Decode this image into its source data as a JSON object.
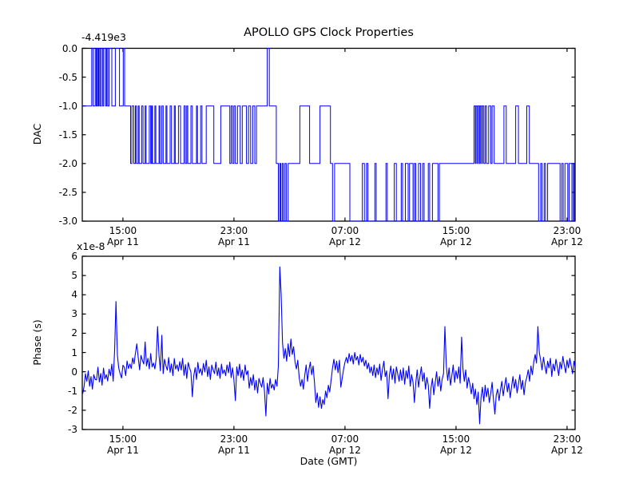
{
  "figure": {
    "title": "APOLLO GPS Clock Properties",
    "xlabel": "Date (GMT)",
    "line_color": "#0000ff",
    "axes_color": "#000000",
    "background_color": "#ffffff"
  },
  "chart_data": [
    {
      "type": "line",
      "subplot": "top",
      "ylabel": "DAC",
      "offset_text": "-4.419e3",
      "ylim": [
        -3.0,
        0.0
      ],
      "yticks": [
        0.0,
        -0.5,
        -1.0,
        -1.5,
        -2.0,
        -2.5,
        -3.0
      ],
      "ytick_labels": [
        "0.0",
        "-0.5",
        "-1.0",
        "-1.5",
        "-2.0",
        "-2.5",
        "-3.0"
      ],
      "xlim_hours": [
        12.07,
        47.58
      ],
      "xticks_hours": [
        15,
        23,
        31,
        39,
        47
      ],
      "xtick_labels": [
        [
          "15:00",
          "Apr 11"
        ],
        [
          "23:00",
          "Apr 11"
        ],
        [
          "07:00",
          "Apr 12"
        ],
        [
          "15:00",
          "Apr 12"
        ],
        [
          "23:00",
          "Apr 12"
        ]
      ],
      "grid": false,
      "legend": "none",
      "series": [
        {
          "name": "DAC steps",
          "style": "steps-post",
          "points": [
            [
              12.07,
              -1
            ],
            [
              12.75,
              0
            ],
            [
              12.85,
              -1
            ],
            [
              13.0,
              0
            ],
            [
              13.08,
              -1
            ],
            [
              13.15,
              0
            ],
            [
              13.22,
              -1
            ],
            [
              13.28,
              0
            ],
            [
              13.36,
              -1
            ],
            [
              13.45,
              0
            ],
            [
              13.55,
              -1
            ],
            [
              13.62,
              0
            ],
            [
              13.75,
              -1
            ],
            [
              13.82,
              0
            ],
            [
              13.9,
              -1
            ],
            [
              14.0,
              0
            ],
            [
              14.2,
              -1
            ],
            [
              14.45,
              0
            ],
            [
              14.75,
              -1
            ],
            [
              15.02,
              0
            ],
            [
              15.12,
              -1
            ],
            [
              15.55,
              -2
            ],
            [
              15.65,
              -1
            ],
            [
              15.78,
              -2
            ],
            [
              15.9,
              -1
            ],
            [
              15.97,
              -2
            ],
            [
              16.1,
              -1
            ],
            [
              16.17,
              -2
            ],
            [
              16.35,
              -1
            ],
            [
              16.45,
              -2
            ],
            [
              16.6,
              -1
            ],
            [
              16.67,
              -2
            ],
            [
              16.9,
              -1
            ],
            [
              17.0,
              -2
            ],
            [
              17.07,
              -1
            ],
            [
              17.13,
              -2
            ],
            [
              17.3,
              -1
            ],
            [
              17.37,
              -2
            ],
            [
              17.6,
              -1
            ],
            [
              17.67,
              -2
            ],
            [
              17.8,
              -1
            ],
            [
              17.9,
              -2
            ],
            [
              18.1,
              -1
            ],
            [
              18.17,
              -2
            ],
            [
              18.4,
              -1
            ],
            [
              18.5,
              -2
            ],
            [
              18.7,
              -1
            ],
            [
              18.77,
              -2
            ],
            [
              19.0,
              -1
            ],
            [
              19.15,
              -2
            ],
            [
              19.4,
              -1
            ],
            [
              19.5,
              -2
            ],
            [
              19.6,
              -1
            ],
            [
              19.67,
              -2
            ],
            [
              19.9,
              -1
            ],
            [
              20.0,
              -2
            ],
            [
              20.3,
              -1
            ],
            [
              20.37,
              -2
            ],
            [
              20.6,
              -1
            ],
            [
              20.7,
              -2
            ],
            [
              21.0,
              -1
            ],
            [
              21.55,
              -2
            ],
            [
              22.05,
              -1
            ],
            [
              22.7,
              -2
            ],
            [
              22.8,
              -1
            ],
            [
              22.9,
              -2
            ],
            [
              23.0,
              -1
            ],
            [
              23.1,
              -2
            ],
            [
              23.25,
              -1
            ],
            [
              23.45,
              -2
            ],
            [
              23.6,
              -1
            ],
            [
              23.9,
              -2
            ],
            [
              24.05,
              -1
            ],
            [
              24.2,
              -2
            ],
            [
              24.35,
              -1
            ],
            [
              24.5,
              -2
            ],
            [
              24.62,
              -1
            ],
            [
              25.4,
              0
            ],
            [
              25.55,
              -1
            ],
            [
              26.05,
              -2
            ],
            [
              26.2,
              -3
            ],
            [
              26.3,
              -2
            ],
            [
              26.37,
              -3
            ],
            [
              26.47,
              -2
            ],
            [
              26.55,
              -3
            ],
            [
              26.67,
              -2
            ],
            [
              26.77,
              -3
            ],
            [
              26.9,
              -2
            ],
            [
              27.75,
              -1
            ],
            [
              28.45,
              -2
            ],
            [
              29.2,
              -1
            ],
            [
              29.95,
              -2
            ],
            [
              30.1,
              -3
            ],
            [
              30.25,
              -2
            ],
            [
              31.35,
              -3
            ],
            [
              32.25,
              -2
            ],
            [
              32.4,
              -3
            ],
            [
              32.55,
              -2
            ],
            [
              32.65,
              -3
            ],
            [
              33.15,
              -2
            ],
            [
              33.25,
              -3
            ],
            [
              33.95,
              -2
            ],
            [
              34.05,
              -3
            ],
            [
              34.55,
              -2
            ],
            [
              34.7,
              -3
            ],
            [
              35.05,
              -2
            ],
            [
              35.15,
              -3
            ],
            [
              35.35,
              -2
            ],
            [
              35.55,
              -3
            ],
            [
              35.65,
              -2
            ],
            [
              35.9,
              -3
            ],
            [
              36.0,
              -2
            ],
            [
              36.1,
              -3
            ],
            [
              36.3,
              -2
            ],
            [
              36.45,
              -3
            ],
            [
              36.6,
              -2
            ],
            [
              36.7,
              -3
            ],
            [
              37.0,
              -2
            ],
            [
              37.1,
              -3
            ],
            [
              37.3,
              -2
            ],
            [
              37.7,
              -3
            ],
            [
              37.8,
              -2
            ],
            [
              40.3,
              -1
            ],
            [
              40.4,
              -2
            ],
            [
              40.45,
              -1
            ],
            [
              40.55,
              -2
            ],
            [
              40.6,
              -1
            ],
            [
              40.7,
              -2
            ],
            [
              40.75,
              -1
            ],
            [
              40.85,
              -2
            ],
            [
              40.9,
              -1
            ],
            [
              41.0,
              -2
            ],
            [
              41.1,
              -1
            ],
            [
              41.2,
              -2
            ],
            [
              41.35,
              -1
            ],
            [
              41.5,
              -2
            ],
            [
              41.6,
              -1
            ],
            [
              41.75,
              -2
            ],
            [
              42.45,
              -1
            ],
            [
              42.62,
              -2
            ],
            [
              43.3,
              -1
            ],
            [
              43.5,
              -2
            ],
            [
              44.1,
              -1
            ],
            [
              44.28,
              -2
            ],
            [
              44.95,
              -3
            ],
            [
              45.1,
              -2
            ],
            [
              45.2,
              -3
            ],
            [
              45.35,
              -2
            ],
            [
              45.45,
              -3
            ],
            [
              45.6,
              -2
            ],
            [
              46.5,
              -3
            ],
            [
              46.62,
              -2
            ],
            [
              46.72,
              -3
            ],
            [
              46.85,
              -2
            ],
            [
              47.05,
              -3
            ],
            [
              47.15,
              -2
            ],
            [
              47.35,
              -3
            ],
            [
              47.45,
              -2
            ],
            [
              47.52,
              -3
            ]
          ]
        }
      ]
    },
    {
      "type": "line",
      "subplot": "bottom",
      "ylabel": "Phase (s)",
      "offset_text": "x1e-8",
      "ylim": [
        -3,
        6
      ],
      "yticks": [
        6,
        5,
        4,
        3,
        2,
        1,
        0,
        -1,
        -2,
        -3
      ],
      "ytick_labels": [
        "6",
        "5",
        "4",
        "3",
        "2",
        "1",
        "0",
        "-1",
        "-2",
        "-3"
      ],
      "xlim_hours": [
        12.07,
        47.58
      ],
      "xticks_hours": [
        15,
        23,
        31,
        39,
        47
      ],
      "xtick_labels": [
        [
          "15:00",
          "Apr 11"
        ],
        [
          "23:00",
          "Apr 11"
        ],
        [
          "07:00",
          "Apr 12"
        ],
        [
          "15:00",
          "Apr 12"
        ],
        [
          "23:00",
          "Apr 12"
        ]
      ],
      "grid": false,
      "legend": "none",
      "series": [
        {
          "name": "phase",
          "style": "line",
          "t0": 12.1,
          "dt": 0.1,
          "values": [
            -1.15,
            -0.75,
            -0.1,
            -0.5,
            0.05,
            -0.75,
            -0.25,
            -0.9,
            -0.15,
            -0.4,
            -0.42,
            0.24,
            -0.53,
            -0.09,
            -0.7,
            0.19,
            -0.37,
            -0.15,
            -0.48,
            0.13,
            -0.21,
            0.4,
            -0.49,
            1.1,
            3.65,
            0.85,
            0.18,
            -0.1,
            -0.32,
            0.34,
            0.24,
            -0.2,
            0.56,
            0.17,
            0.4,
            0.17,
            0.72,
            0.41,
            0.95,
            1.45,
            0.75,
            0.1,
            0.85,
            0.6,
            0.4,
            1.55,
            0.3,
            0.7,
            0.15,
            0.95,
            0.25,
            0.45,
            0.15,
            0.7,
            2.35,
            0.85,
            0.05,
            1.9,
            -0.1,
            0.65,
            0.3,
            0.08,
            0.74,
            -0.03,
            0.41,
            -0.2,
            0.69,
            0.14,
            0.36,
            0.03,
            0.53,
            0.09,
            0.7,
            -0.19,
            0.37,
            -0.35,
            0.48,
            0.2,
            -0.02,
            -1.3,
            -0.23,
            0.21,
            -0.4,
            0.49,
            -0.07,
            0.16,
            -0.18,
            0.43,
            -0.01,
            0.6,
            -0.25,
            0.25,
            -0.4,
            0.35,
            0.1,
            -0.1,
            0.5,
            -0.2,
            0.2,
            -0.35,
            0.4,
            -0.1,
            0.1,
            -0.2,
            0.35,
            -0.05,
            0.5,
            -0.3,
            0.2,
            -0.45,
            -1.5,
            0.25,
            -0.2,
            0.4,
            -0.3,
            0.1,
            -0.45,
            0.35,
            -0.15,
            0.05,
            -0.85,
            -0.3,
            -0.7,
            -0.15,
            -0.95,
            -0.45,
            -1.1,
            -0.35,
            -0.6,
            -0.8,
            -0.3,
            -1.0,
            -2.3,
            -0.6,
            -1.15,
            -0.35,
            -0.85,
            -0.65,
            -0.95,
            -0.4,
            -0.75,
            0.3,
            5.45,
            4.0,
            1.5,
            0.7,
            1.2,
            0.55,
            1.45,
            0.8,
            1.7,
            0.9,
            1.3,
            0.5,
            0.15,
            0.6,
            -0.3,
            -0.75,
            -0.4,
            -0.9,
            -0.2,
            0.35,
            -0.5,
            0.1,
            0.5,
            -0.15,
            0.3,
            -0.55,
            -1.6,
            -1.1,
            -1.85,
            -1.3,
            -1.9,
            -1.45,
            -1.7,
            -1.0,
            -1.35,
            -0.7,
            -1.05,
            -0.45,
            0.2,
            0.65,
            0.1,
            0.55,
            -0.05,
            0.6,
            -0.8,
            -0.35,
            0.15,
            0.5,
            0.75,
            0.45,
            0.95,
            0.55,
            0.85,
            0.4,
            1.0,
            0.6,
            0.8,
            0.35,
            0.9,
            0.5,
            0.75,
            0.3,
            0.6,
            0.15,
            0.45,
            -0.05,
            0.25,
            -0.2,
            0.35,
            -0.3,
            0.2,
            -0.15,
            0.4,
            -0.45,
            0.1,
            0.55,
            -0.25,
            0.05,
            -1.4,
            -0.2,
            0.3,
            -0.4,
            0.15,
            -0.6,
            0.25,
            -0.1,
            -0.5,
            0.1,
            -0.45,
            0.2,
            -0.65,
            0.05,
            -0.35,
            0.3,
            -0.75,
            -0.15,
            -0.55,
            -1.6,
            -0.6,
            0.1,
            -0.8,
            -0.25,
            0.25,
            -0.5,
            -0.05,
            -0.9,
            -0.3,
            -0.7,
            -1.9,
            -0.85,
            -0.35,
            -1.2,
            -0.55,
            0.0,
            -0.75,
            -0.25,
            -1.0,
            -0.4,
            -0.1,
            2.35,
            0.3,
            -0.45,
            0.2,
            -0.7,
            -0.2,
            0.35,
            -0.55,
            0.05,
            -0.35,
            0.25,
            -0.6,
            1.8,
            0.15,
            -0.5,
            0.1,
            -0.85,
            -0.3,
            -0.65,
            -1.15,
            -0.6,
            -1.4,
            -0.9,
            -1.7,
            -1.05,
            -2.7,
            -1.35,
            -0.8,
            -1.55,
            -0.7,
            -1.3,
            -0.85,
            -1.6,
            -1.1,
            -0.55,
            -1.45,
            -2.2,
            -1.2,
            -0.9,
            -1.5,
            -0.95,
            -0.5,
            -1.25,
            -0.75,
            -0.3,
            -1.05,
            -0.6,
            -1.35,
            -0.8,
            -0.25,
            -0.85,
            -0.4,
            -1.1,
            -0.65,
            -0.15,
            -0.9,
            -0.45,
            -1.2,
            -0.55,
            -0.3,
            0.1,
            -0.5,
            0.3,
            -0.15,
            0.5,
            0.9,
            0.45,
            2.35,
            1.0,
            0.6,
            0.1,
            0.75,
            0.3,
            -0.1,
            0.55,
            0.2,
            0.7,
            -0.25,
            0.4,
            0.05,
            0.65,
            0.25,
            -0.2,
            0.5,
            0.15,
            0.8,
            0.35,
            -0.05,
            0.6,
            0.2,
            0.7,
            0.3,
            -0.1,
            0.55,
            0.25,
            0.45
          ]
        }
      ]
    }
  ]
}
